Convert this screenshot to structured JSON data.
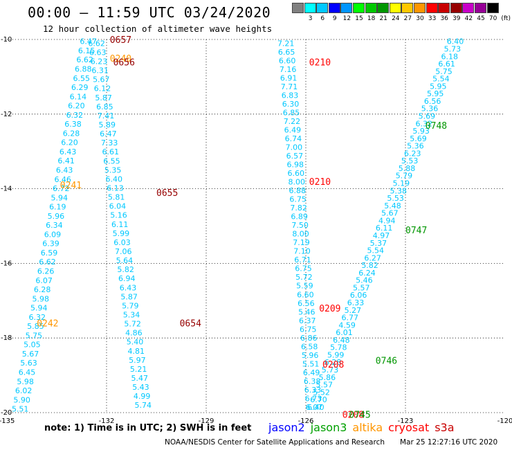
{
  "header": {
    "title": "00:00 – 11:59 UTC 03/24/2020",
    "subtitle": "12 hour collection of altimeter wave heights"
  },
  "colorbar": {
    "unit": "(ft)",
    "items": [
      {
        "label": "",
        "color": "#808080"
      },
      {
        "label": "3",
        "color": "#00ffff"
      },
      {
        "label": "6",
        "color": "#00c8ff"
      },
      {
        "label": "9",
        "color": "#0000ff"
      },
      {
        "label": "12",
        "color": "#0096ff"
      },
      {
        "label": "15",
        "color": "#00ff00"
      },
      {
        "label": "18",
        "color": "#00c800"
      },
      {
        "label": "21",
        "color": "#009600"
      },
      {
        "label": "24",
        "color": "#ffff00"
      },
      {
        "label": "27",
        "color": "#ffc800"
      },
      {
        "label": "30",
        "color": "#ff9600"
      },
      {
        "label": "33",
        "color": "#ff0000"
      },
      {
        "label": "36",
        "color": "#c80000"
      },
      {
        "label": "39",
        "color": "#960000"
      },
      {
        "label": "42",
        "color": "#c800c8"
      },
      {
        "label": "45",
        "color": "#960096"
      },
      {
        "label": "70",
        "color": "#000000"
      }
    ]
  },
  "footer": {
    "note": "note: 1) Time is in UTC; 2) SWH is in feet",
    "legend": [
      {
        "name": "jason2",
        "color": "#0000ff"
      },
      {
        "name": "jason3",
        "color": "#00a000"
      },
      {
        "name": "altika",
        "color": "#ff9600"
      },
      {
        "name": "cryosat",
        "color": "#ff0000"
      },
      {
        "name": "s3a",
        "color": "#c80000"
      }
    ],
    "credit": "NOAA/NESDIS Center for Satellite Applications and Research",
    "timestamp": "Mar 25 12:27:16 UTC 2020"
  },
  "chart_data": {
    "type": "scatter",
    "title": "00:00 – 11:59 UTC 03/24/2020",
    "subtitle": "12 hour collection of altimeter wave heights",
    "xlim": [
      -135,
      -120
    ],
    "ylim": [
      -20,
      -10
    ],
    "x_ticks": [
      -135,
      -132,
      -129,
      -126,
      -123,
      -120
    ],
    "x_tick_labels": [
      "-135",
      "-132",
      "-129",
      "-126",
      "-123",
      "-120"
    ],
    "y_ticks": [
      -10,
      -12,
      -14,
      -16,
      -18,
      -20
    ],
    "y_tick_labels": [
      "-10",
      "-12",
      "-14",
      "-16",
      "-18",
      "-20"
    ],
    "grid": true,
    "value_color": "#00c8ff",
    "tracks": [
      {
        "id": "track-a",
        "start": [
          -132.55,
          -10.05
        ],
        "end": [
          -134.6,
          -19.9
        ],
        "values": [
          "6.47",
          "6.15",
          "6.62",
          "6.88",
          "6.55",
          "6.29",
          "6.14",
          "6.20",
          "6.32",
          "6.38",
          "6.28",
          "6.20",
          "6.43",
          "6.41",
          "6.43",
          "6.46",
          "6.72",
          "5.94",
          "6.19",
          "5.96",
          "6.34",
          "6.09",
          "6.39",
          "6.59",
          "6.62",
          "6.26",
          "6.07",
          "6.28",
          "5.98",
          "5.94",
          "6.32",
          "5.85",
          "5.75",
          "5.05",
          "5.67",
          "5.63",
          "6.45",
          "5.98",
          "6.02",
          "5.90",
          "5.51"
        ]
      },
      {
        "id": "track-b",
        "start": [
          -132.3,
          -10.1
        ],
        "end": [
          -130.9,
          -19.8
        ],
        "values": [
          "6.62",
          "6.63",
          "6.23",
          "6.31",
          "5.67",
          "6.12",
          "5.87",
          "6.85",
          "7.41",
          "5.89",
          "6.47",
          "7.33",
          "6.61",
          "6.55",
          "5.35",
          "6.40",
          "6.13",
          "5.81",
          "6.04",
          "5.16",
          "6.11",
          "5.99",
          "6.03",
          "7.06",
          "5.64",
          "5.82",
          "6.94",
          "6.43",
          "5.87",
          "5.79",
          "5.34",
          "5.72",
          "4.86",
          "5.40",
          "4.81",
          "5.97",
          "5.21",
          "5.47",
          "5.43",
          "4.99",
          "5.74"
        ]
      },
      {
        "id": "track-c",
        "start": [
          -126.6,
          -10.1
        ],
        "end": [
          -125.75,
          -19.85
        ],
        "values": [
          "7.21",
          "6.65",
          "6.60",
          "7.16",
          "6.91",
          "7.71",
          "6.83",
          "6.30",
          "6.85",
          "7.22",
          "6.49",
          "6.74",
          "7.00",
          "6.57",
          "6.98",
          "6.60",
          "8.00",
          "6.88",
          "6.75",
          "7.82",
          "6.89",
          "7.50",
          "8.00",
          "7.19",
          "7.10",
          "6.71",
          "6.75",
          "5.72",
          "5.59",
          "6.60",
          "6.56",
          "5.46",
          "6.37",
          "6.75",
          "6.86",
          "6.58",
          "5.96",
          "5.51",
          "6.49",
          "6.38",
          "6.33",
          "6.73",
          "6.07"
        ]
      },
      {
        "id": "track-d",
        "start": [
          -121.5,
          -10.05
        ],
        "end": [
          -125.7,
          -19.85
        ],
        "values": [
          "6.40",
          "5.73",
          "6.18",
          "6.61",
          "5.75",
          "5.54",
          "5.95",
          "5.95",
          "6.56",
          "5.36",
          "5.69",
          "6.32",
          "5.93",
          "5.69",
          "5.36",
          "6.23",
          "5.53",
          "5.88",
          "5.79",
          "5.19",
          "5.38",
          "5.53",
          "5.48",
          "5.67",
          "4.94",
          "6.11",
          "4.97",
          "5.37",
          "5.54",
          "6.27",
          "5.82",
          "6.24",
          "5.46",
          "5.57",
          "6.06",
          "6.33",
          "5.27",
          "6.77",
          "4.59",
          "6.01",
          "6.48",
          "5.78",
          "5.99",
          "6.28",
          "5.73",
          "5.86",
          "5.57",
          "5.52",
          "6.70",
          "6.40"
        ]
      }
    ],
    "annotations": [
      {
        "text": "0657",
        "x": -131.9,
        "y": -10.0,
        "color": "#960000"
      },
      {
        "text": "0240",
        "x": -131.9,
        "y": -10.5,
        "color": "#ff9600"
      },
      {
        "text": "0656",
        "x": -131.8,
        "y": -10.6,
        "color": "#960000"
      },
      {
        "text": "0241",
        "x": -133.4,
        "y": -13.9,
        "color": "#ff9600"
      },
      {
        "text": "0655",
        "x": -130.5,
        "y": -14.1,
        "color": "#960000"
      },
      {
        "text": "0242",
        "x": -134.1,
        "y": -17.6,
        "color": "#ff9600"
      },
      {
        "text": "0654",
        "x": -129.8,
        "y": -17.6,
        "color": "#960000"
      },
      {
        "text": "0210",
        "x": -125.9,
        "y": -10.6,
        "color": "#ff0000"
      },
      {
        "text": "0210",
        "x": -125.9,
        "y": -13.8,
        "color": "#ff0000"
      },
      {
        "text": "0209",
        "x": -125.6,
        "y": -17.2,
        "color": "#ff0000"
      },
      {
        "text": "0208",
        "x": -125.5,
        "y": -18.7,
        "color": "#ff0000"
      },
      {
        "text": "0208",
        "x": -124.9,
        "y": -20.05,
        "color": "#ff0000"
      },
      {
        "text": "0745",
        "x": -124.7,
        "y": -20.05,
        "color": "#009600"
      },
      {
        "text": "0746",
        "x": -123.9,
        "y": -18.6,
        "color": "#009600"
      },
      {
        "text": "0747",
        "x": -123.0,
        "y": -15.1,
        "color": "#009600"
      },
      {
        "text": "0748",
        "x": -122.4,
        "y": -12.3,
        "color": "#009600"
      }
    ]
  }
}
